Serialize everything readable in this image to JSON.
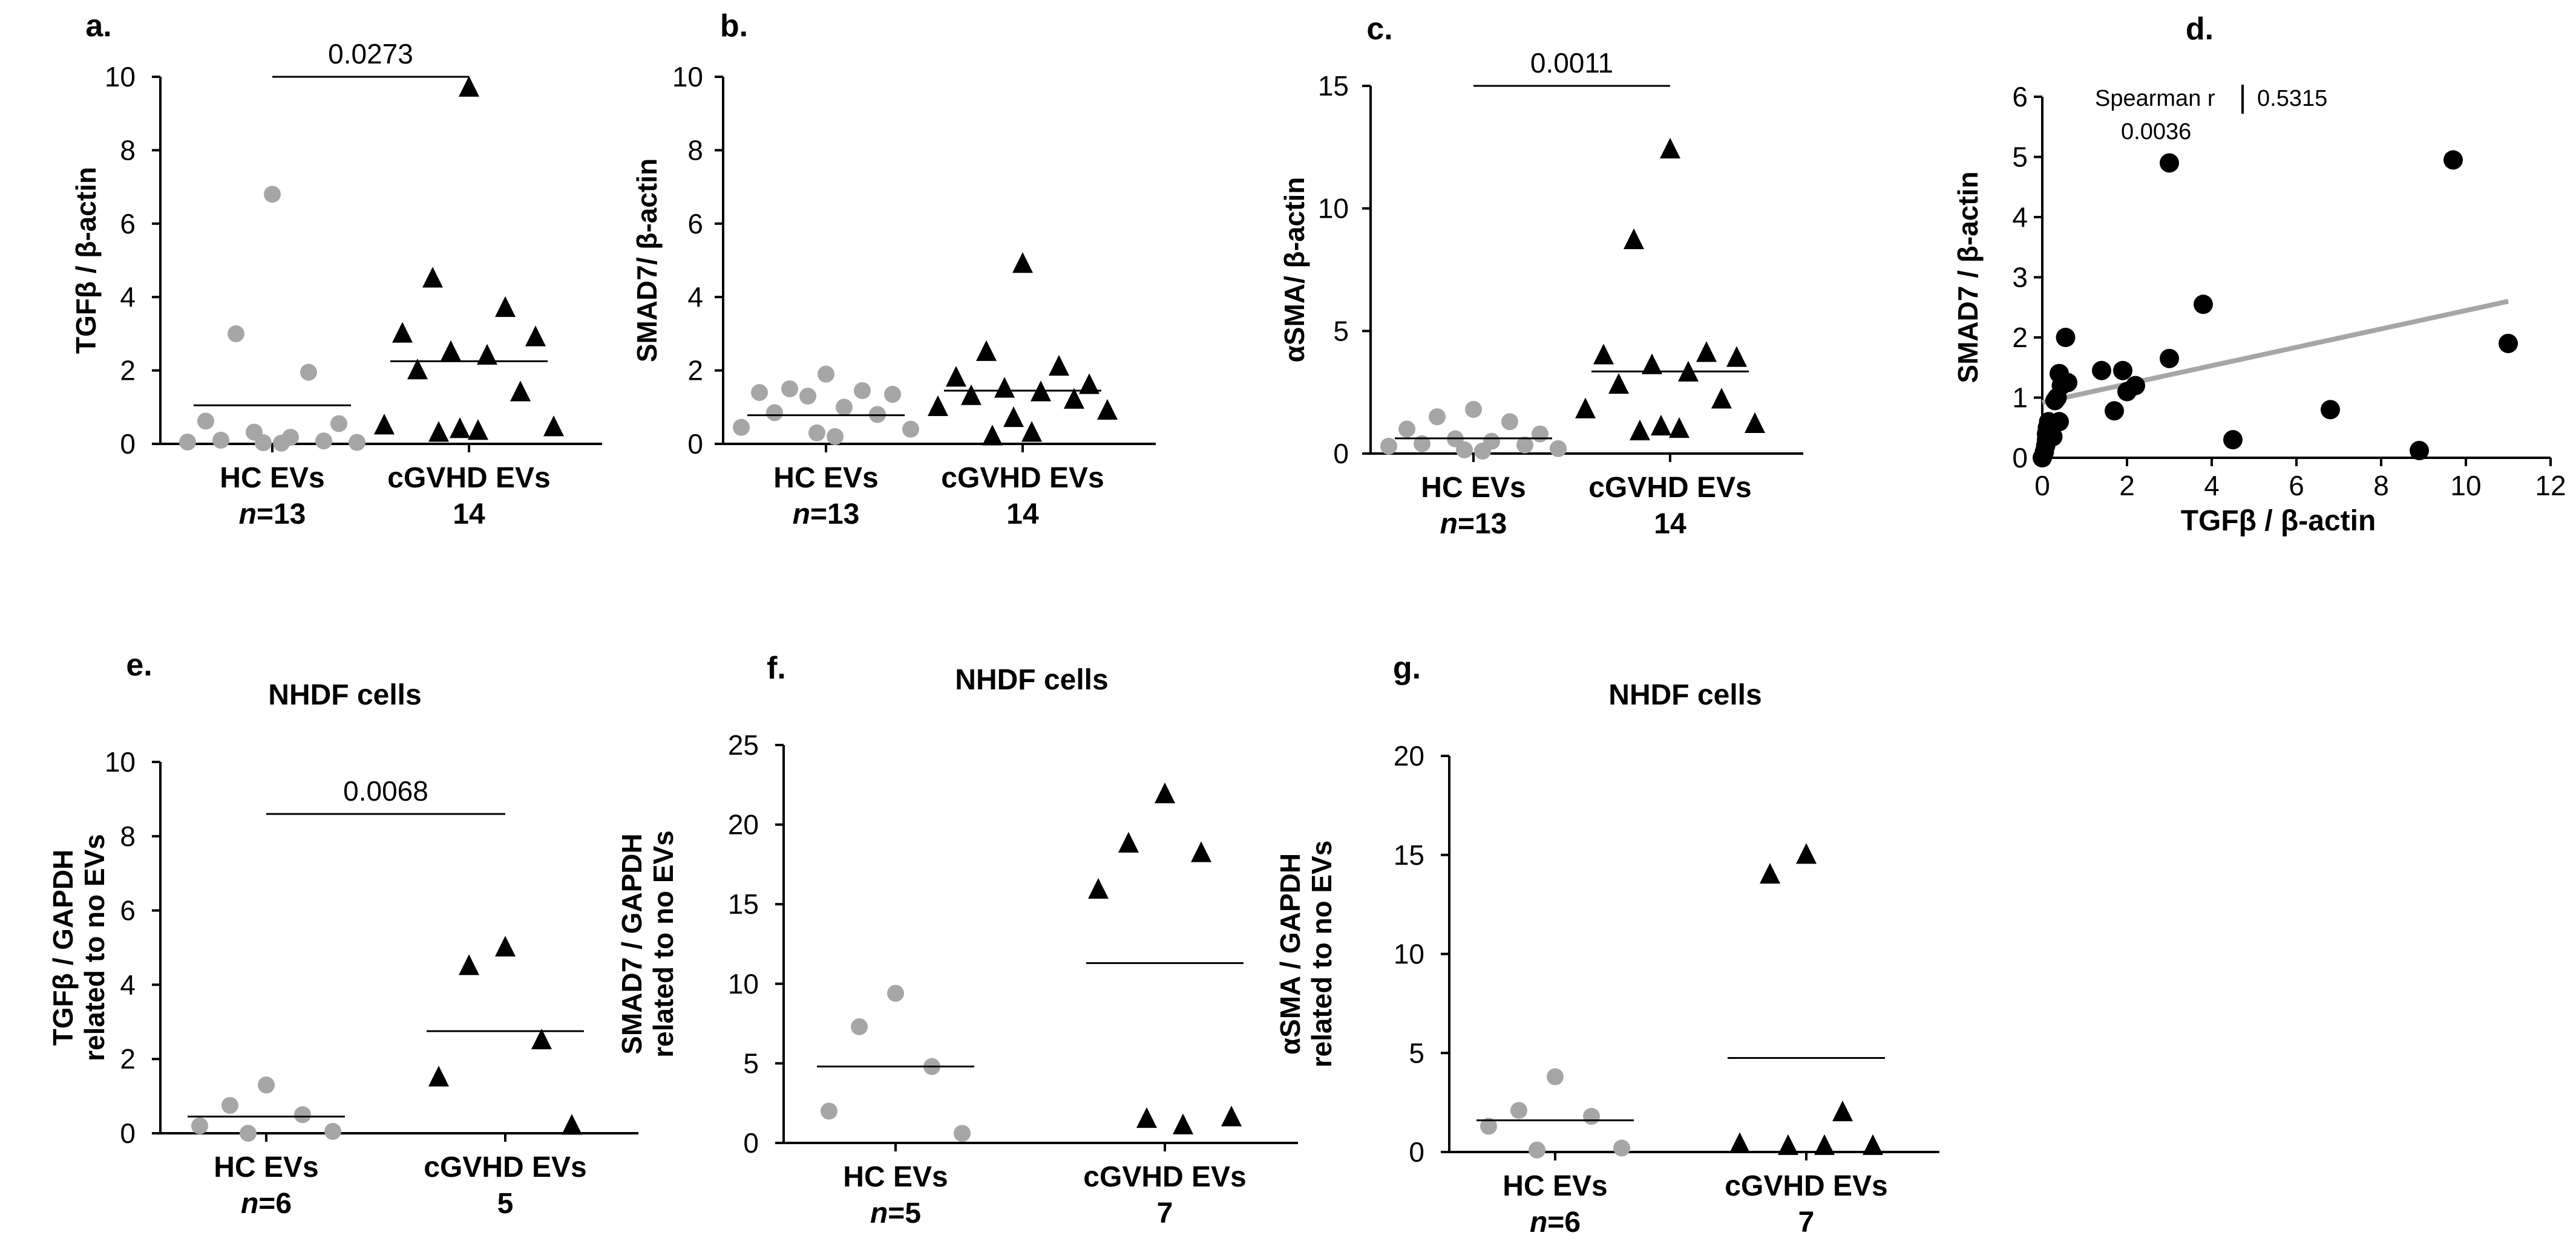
{
  "chart_data": [
    {
      "panel": "a.",
      "type": "scatter",
      "title": "",
      "ylabel": "TGFβ  / β-actin",
      "ylim": [
        0,
        10
      ],
      "yticks": [
        "0",
        "2",
        "4",
        "6",
        "8",
        "10"
      ],
      "categories": [
        "HC EVs",
        "cGVHD EVs"
      ],
      "n_labels": [
        [
          "n",
          "=13"
        ],
        [
          "",
          "14"
        ]
      ],
      "series": [
        {
          "marker": "circle",
          "color": "#a6a6a6",
          "values": [
            6.8,
            3.0,
            1.95,
            0.62,
            0.55,
            0.32,
            0.18,
            0.1,
            0.08,
            0.05,
            0.04,
            0.03,
            0.02
          ],
          "mean": 1.05
        },
        {
          "marker": "triangle",
          "color": "#000000",
          "values": [
            9.7,
            4.5,
            3.7,
            3.0,
            2.9,
            2.5,
            2.4,
            2.0,
            1.4,
            0.5,
            0.45,
            0.4,
            0.35,
            0.3
          ],
          "mean": 2.25
        }
      ],
      "pvalue": "0.0273",
      "pvalue_y": 10.0
    },
    {
      "panel": "b.",
      "type": "scatter",
      "title": "",
      "ylabel": "SMAD7/ β-actin",
      "ylim": [
        0,
        10
      ],
      "yticks": [
        "0",
        "2",
        "4",
        "6",
        "8",
        "10"
      ],
      "categories": [
        "HC EVs",
        "cGVHD EVs"
      ],
      "n_labels": [
        [
          "n",
          "=13"
        ],
        [
          "",
          "14"
        ]
      ],
      "series": [
        {
          "marker": "circle",
          "color": "#a6a6a6",
          "values": [
            1.9,
            1.5,
            1.45,
            1.4,
            1.35,
            1.3,
            1.0,
            0.85,
            0.8,
            0.45,
            0.4,
            0.3,
            0.2
          ],
          "mean": 0.78
        },
        {
          "marker": "triangle",
          "color": "#000000",
          "values": [
            4.9,
            2.5,
            2.1,
            1.8,
            1.6,
            1.5,
            1.4,
            1.3,
            1.2,
            1.0,
            0.9,
            0.7,
            0.3,
            0.2
          ],
          "mean": 1.45
        }
      ],
      "pvalue": "",
      "pvalue_y": null
    },
    {
      "panel": "c.",
      "type": "scatter",
      "title": "",
      "ylabel": "αSMA/ β-actin",
      "ylim": [
        0,
        15
      ],
      "yticks": [
        "0",
        "5",
        "10",
        "15"
      ],
      "categories": [
        "HC EVs",
        "cGVHD EVs"
      ],
      "n_labels": [
        [
          "n",
          "=13"
        ],
        [
          "",
          "14"
        ]
      ],
      "series": [
        {
          "marker": "circle",
          "color": "#a6a6a6",
          "values": [
            1.8,
            1.5,
            1.3,
            1.0,
            0.8,
            0.6,
            0.5,
            0.4,
            0.35,
            0.3,
            0.2,
            0.15,
            0.1
          ],
          "mean": 0.62
        },
        {
          "marker": "triangle",
          "color": "#000000",
          "values": [
            12.4,
            8.7,
            4.1,
            4.0,
            3.9,
            3.6,
            3.3,
            2.8,
            2.2,
            1.8,
            1.2,
            1.1,
            1.0,
            0.9
          ],
          "mean": 3.35
        }
      ],
      "pvalue": "0.0011",
      "pvalue_y": 15.0
    },
    {
      "panel": "d.",
      "type": "scatter",
      "title": "",
      "xlabel": "TGFβ / β-actin",
      "ylabel": "SMAD7 / β-actin",
      "xlim": [
        0,
        12
      ],
      "ylim": [
        0,
        6
      ],
      "xticks": [
        "0",
        "2",
        "4",
        "6",
        "8",
        "10",
        "12"
      ],
      "yticks": [
        "0",
        "1",
        "2",
        "3",
        "4",
        "5",
        "6"
      ],
      "points": [
        [
          0,
          0
        ],
        [
          0.05,
          0.1
        ],
        [
          0.08,
          0.2
        ],
        [
          0.1,
          0.3
        ],
        [
          0.1,
          0.4
        ],
        [
          0.12,
          0.5
        ],
        [
          0.15,
          0.6
        ],
        [
          0.2,
          0.5
        ],
        [
          0.25,
          0.35
        ],
        [
          0.3,
          0.95
        ],
        [
          0.35,
          1.0
        ],
        [
          0.4,
          0.6
        ],
        [
          0.4,
          1.4
        ],
        [
          0.45,
          1.2
        ],
        [
          0.55,
          2.0
        ],
        [
          0.6,
          1.25
        ],
        [
          1.4,
          1.45
        ],
        [
          1.7,
          0.78
        ],
        [
          1.9,
          1.45
        ],
        [
          2.0,
          1.1
        ],
        [
          2.2,
          1.2
        ],
        [
          3.0,
          4.9
        ],
        [
          3.0,
          1.65
        ],
        [
          3.8,
          2.55
        ],
        [
          4.5,
          0.3
        ],
        [
          6.8,
          0.8
        ],
        [
          8.9,
          0.12
        ],
        [
          9.7,
          4.95
        ],
        [
          11.0,
          1.9
        ]
      ],
      "fit": {
        "x": [
          0,
          11
        ],
        "y": [
          0.92,
          2.6
        ],
        "color": "#a6a6a6"
      },
      "stats": {
        "label": "Spearman r",
        "r": "0.5315",
        "p": "0.0036"
      }
    },
    {
      "panel": "e.",
      "type": "scatter",
      "title": "NHDF cells",
      "ylabel": "TGFβ / GAPDH",
      "ylabel2": "related to no EVs",
      "ylim": [
        0,
        10
      ],
      "yticks": [
        "0",
        "2",
        "4",
        "6",
        "8",
        "10"
      ],
      "categories": [
        "HC EVs",
        "cGVHD EVs"
      ],
      "n_labels": [
        [
          "n",
          "=6"
        ],
        [
          "",
          "5"
        ]
      ],
      "series": [
        {
          "marker": "circle",
          "color": "#a6a6a6",
          "values": [
            1.3,
            0.75,
            0.5,
            0.2,
            0.05,
            0.0
          ],
          "mean": 0.45
        },
        {
          "marker": "triangle",
          "color": "#000000",
          "values": [
            5.0,
            4.5,
            2.5,
            1.5,
            0.2
          ],
          "mean": 2.75
        }
      ],
      "pvalue": "0.0068",
      "pvalue_y": 8.6
    },
    {
      "panel": "f.",
      "type": "scatter",
      "title": "NHDF cells",
      "ylabel": "SMAD7 / GAPDH",
      "ylabel2": "related to no EVs",
      "ylim": [
        0,
        25
      ],
      "yticks": [
        "0",
        "5",
        "10",
        "15",
        "20",
        "25"
      ],
      "categories": [
        "HC EVs",
        "cGVHD EVs"
      ],
      "n_labels": [
        [
          "n",
          "=5"
        ],
        [
          "",
          "7"
        ]
      ],
      "series": [
        {
          "marker": "circle",
          "color": "#a6a6a6",
          "values": [
            9.4,
            7.3,
            4.8,
            2.0,
            0.6
          ],
          "mean": 4.8
        },
        {
          "marker": "triangle",
          "color": "#000000",
          "values": [
            21.9,
            18.8,
            18.2,
            15.9,
            1.6,
            1.5,
            1.1
          ],
          "mean": 11.3
        }
      ],
      "pvalue": "",
      "pvalue_y": null
    },
    {
      "panel": "g.",
      "type": "scatter",
      "title": "NHDF cells",
      "ylabel": "αSMA / GAPDH",
      "ylabel2": "related to no EVs",
      "ylim": [
        0,
        20
      ],
      "yticks": [
        "0",
        "5",
        "10",
        "15",
        "20"
      ],
      "categories": [
        "HC EVs",
        "cGVHD EVs"
      ],
      "n_labels": [
        [
          "n",
          "=6"
        ],
        [
          "",
          "7"
        ]
      ],
      "series": [
        {
          "marker": "circle",
          "color": "#a6a6a6",
          "values": [
            3.8,
            2.1,
            1.8,
            1.3,
            0.2,
            0.1
          ],
          "mean": 1.6
        },
        {
          "marker": "triangle",
          "color": "#000000",
          "values": [
            15.0,
            14.0,
            2.0,
            0.4,
            0.3,
            0.3,
            0.3
          ],
          "mean": 4.75
        }
      ],
      "pvalue": "",
      "pvalue_y": null
    }
  ]
}
